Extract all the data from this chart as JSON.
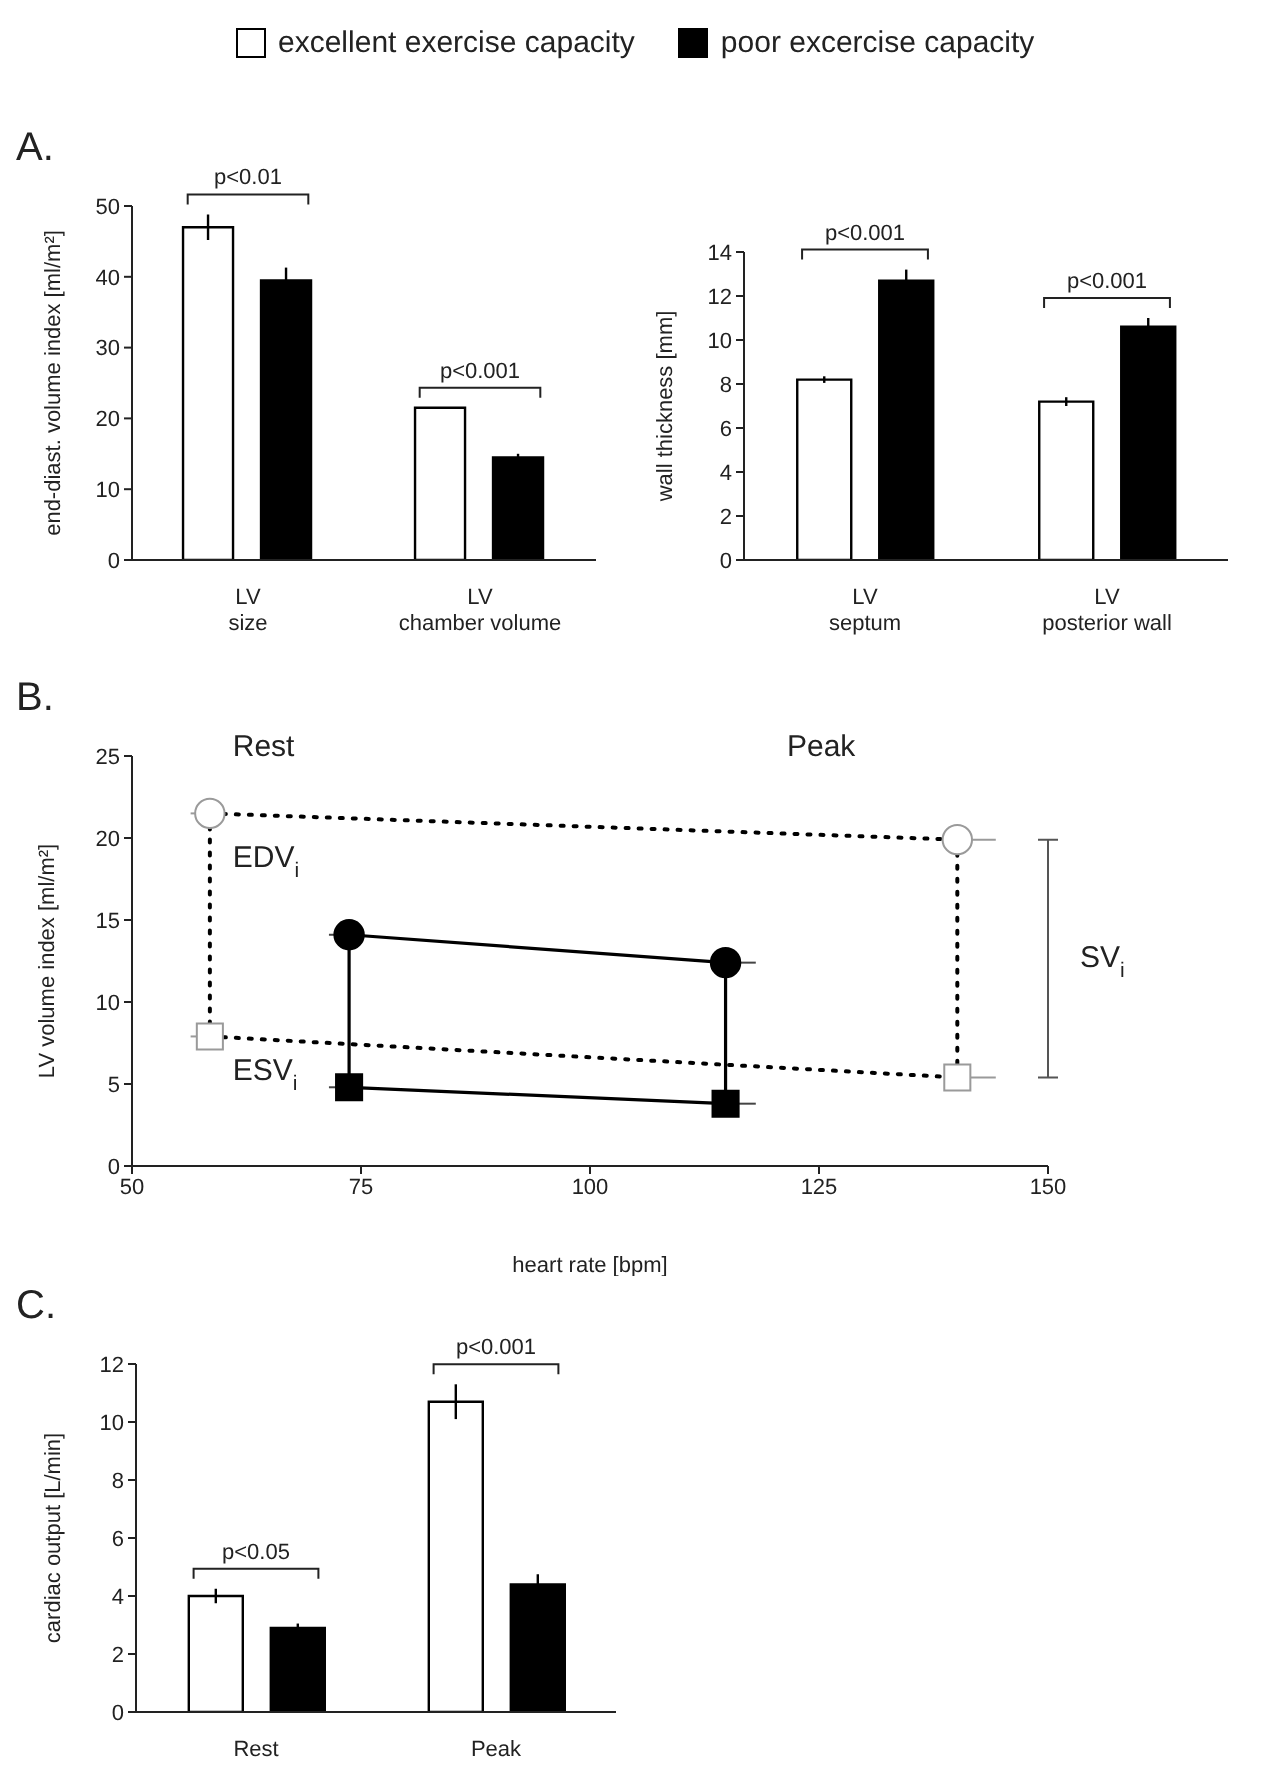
{
  "chart_data": [
    {
      "type": "bar",
      "title": "A.",
      "categories": [
        "LV\nsize",
        "LV\nchamber volume"
      ],
      "ylabel": "end-diast. volume index [ml/m²]",
      "ylim": [
        0,
        50
      ],
      "yticks": [
        0,
        10,
        20,
        30,
        40,
        50
      ],
      "legend": "top",
      "annotations": [
        "p<0.01",
        "p<0.001"
      ],
      "series": [
        {
          "name": "excellent exercise capacity",
          "color": "#ffffff",
          "values": [
            47,
            21.5
          ],
          "errors": [
            1.8,
            null
          ]
        },
        {
          "name": "poor excercise capacity",
          "color": "#000000",
          "values": [
            39.5,
            14.5
          ],
          "errors": [
            1.8,
            0.5
          ]
        }
      ]
    },
    {
      "type": "bar",
      "categories": [
        "LV\nseptum",
        "LV\nposterior wall"
      ],
      "ylabel": "wall thickness [mm]",
      "ylim": [
        0,
        14
      ],
      "yticks": [
        0,
        2,
        4,
        6,
        8,
        10,
        12,
        14
      ],
      "annotations": [
        "p<0.001",
        "p<0.001"
      ],
      "series": [
        {
          "color": "#ffffff",
          "values": [
            8.2,
            7.2
          ],
          "errors": [
            0.15,
            0.2
          ]
        },
        {
          "color": "#000000",
          "values": [
            12.7,
            10.6
          ],
          "errors": [
            0.5,
            0.4
          ]
        }
      ]
    },
    {
      "type": "line",
      "title": "B.",
      "xlabel": "heart rate [bpm]",
      "ylabel": "LV volume index  [ml/m²]",
      "xlim": [
        50,
        150
      ],
      "xticks": [
        50,
        75,
        100,
        125,
        150
      ],
      "ylim": [
        0,
        25
      ],
      "yticks": [
        0,
        5,
        10,
        15,
        20,
        25
      ],
      "annotations": [
        "Rest",
        "Peak",
        "EDV$_{i}$",
        "ESV$_{i}$",
        "SV$_{i}$"
      ],
      "series": [
        {
          "x": [
            58.5,
            140.1
          ],
          "values": [
            21.5,
            19.9
          ],
          "color": "#000000",
          "line_style": "dotted",
          "marker": "circle",
          "xerrors": [
            [
              56.4,
              58.5
            ],
            [
              140.1,
              144.3
            ]
          ]
        },
        {
          "x": [
            58.5,
            140.1
          ],
          "values": [
            7.9,
            5.4
          ],
          "color": "#000000",
          "line_style": "dotted",
          "marker": "square",
          "xerrors": [
            [
              56.4,
              58.5
            ],
            [
              140.1,
              144.3
            ]
          ]
        },
        {
          "x": [
            73.7,
            114.8
          ],
          "values": [
            14.1,
            12.4
          ],
          "color": "#000000",
          "line_style": "solid",
          "marker": "circle",
          "xerrors": [
            [
              71.5,
              73.7
            ],
            [
              114.8,
              118.1
            ]
          ]
        },
        {
          "x": [
            73.7,
            114.8
          ],
          "values": [
            4.8,
            3.8
          ],
          "color": "#000000",
          "line_style": "solid",
          "marker": "square",
          "xerrors": [
            [
              71.5,
              73.7
            ],
            [
              114.8,
              118.1
            ]
          ]
        },
        {
          "x": [
            58.5,
            58.5
          ],
          "values": [
            21.5,
            7.9
          ],
          "color": "#000000",
          "line_style": "dotted",
          "marker": "none"
        },
        {
          "x": [
            140.1,
            140.1
          ],
          "values": [
            19.9,
            5.4
          ],
          "color": "#000000",
          "line_style": "dotted",
          "marker": "none"
        },
        {
          "x": [
            73.7,
            73.7
          ],
          "values": [
            14.1,
            4.8
          ],
          "color": "#000000",
          "line_style": "solid",
          "marker": "none"
        },
        {
          "x": [
            114.8,
            114.8
          ],
          "values": [
            12.4,
            3.8
          ],
          "color": "#000000",
          "line_style": "solid",
          "marker": "none"
        }
      ]
    },
    {
      "type": "bar",
      "title": "C.",
      "categories": [
        "Rest",
        "Peak"
      ],
      "ylabel": "cardiac output [L/min]",
      "ylim": [
        0,
        12
      ],
      "yticks": [
        0,
        2,
        4,
        6,
        8,
        10,
        12
      ],
      "annotations": [
        "p<0.05",
        "p<0.001"
      ],
      "series": [
        {
          "color": "#ffffff",
          "values": [
            4.0,
            10.7
          ],
          "errors": [
            0.25,
            0.6
          ]
        },
        {
          "color": "#000000",
          "values": [
            2.9,
            4.4
          ],
          "errors": [
            0.15,
            0.35
          ]
        }
      ]
    }
  ]
}
